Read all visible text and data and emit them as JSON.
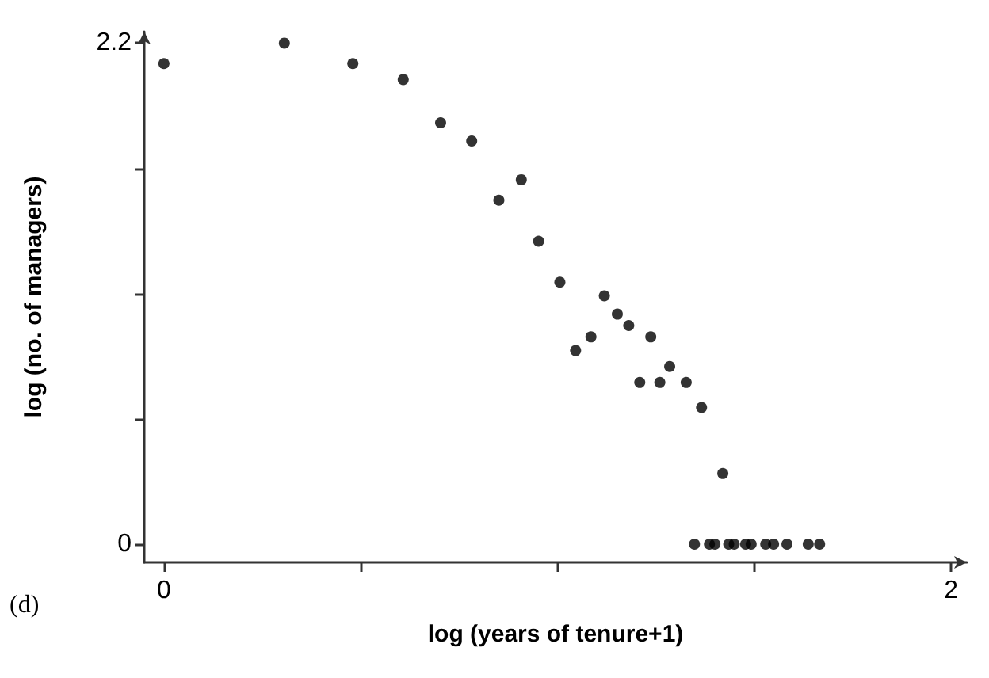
{
  "chart_data": {
    "type": "scatter",
    "xlabel": "log (years of tenure+1)",
    "ylabel": "log (no. of managers)",
    "annotations": [
      "(d)"
    ],
    "x": [
      0,
      0.306,
      0.48,
      0.608,
      0.703,
      0.782,
      0.851,
      0.908,
      0.952,
      1.006,
      1.046,
      1.085,
      1.119,
      1.152,
      1.181,
      1.209,
      1.237,
      1.26,
      1.285,
      1.327,
      1.366,
      1.42,
      1.348,
      1.386,
      1.4,
      1.435,
      1.449,
      1.478,
      1.492,
      1.529,
      1.549,
      1.583,
      1.637,
      1.666
    ],
    "values": [
      2.11,
      2.2,
      2.11,
      2.04,
      1.85,
      1.77,
      1.51,
      1.6,
      1.33,
      1.15,
      0.85,
      0.91,
      1.09,
      1.01,
      0.96,
      0.71,
      0.91,
      0.71,
      0.78,
      0.71,
      0.6,
      0.31,
      0,
      0,
      0,
      0,
      0,
      0,
      0,
      0,
      0,
      0,
      0,
      0
    ],
    "color": "#000000",
    "marker": "circle",
    "grid": false,
    "xlim": [
      -0.05,
      2.04
    ],
    "xticks": [
      0,
      {
        "value": 0.5,
        "label": null
      },
      {
        "value": 1,
        "label": null
      },
      {
        "value": 1.5,
        "label": null
      },
      2
    ],
    "ylim": [
      -0.08,
      2.25
    ],
    "yticks": [
      0,
      {
        "value": 0.55,
        "label": null
      },
      {
        "value": 1.1,
        "label": null
      },
      {
        "value": 1.65,
        "label": null
      },
      2.2
    ]
  }
}
